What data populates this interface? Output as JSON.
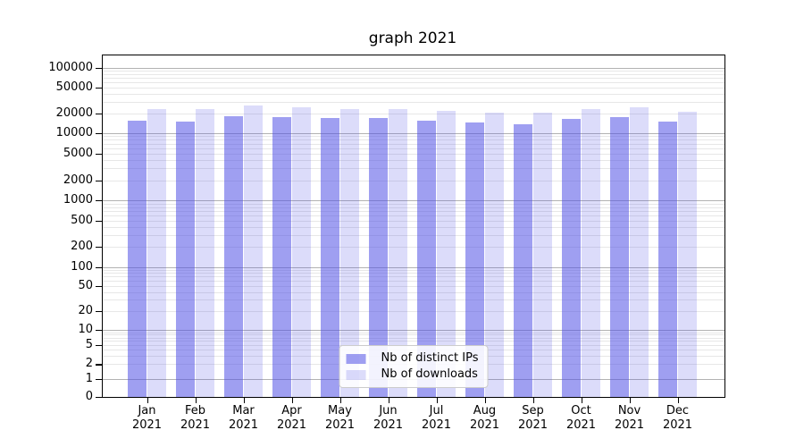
{
  "title": "graph 2021",
  "chart_data": {
    "type": "bar",
    "categories": [
      "Jan",
      "Feb",
      "Mar",
      "Apr",
      "May",
      "Jun",
      "Jul",
      "Aug",
      "Sep",
      "Oct",
      "Nov",
      "Dec"
    ],
    "category_sublabel": "2021",
    "series": [
      {
        "name": "Nb of distinct IPs",
        "color": "#5050E6",
        "alpha": 0.55,
        "values": [
          15600,
          15200,
          18100,
          17400,
          17100,
          17000,
          15700,
          14500,
          13900,
          16400,
          17500,
          14900
        ]
      },
      {
        "name": "Nb of downloads",
        "color": "#5050E6",
        "alpha": 0.2,
        "values": [
          23000,
          23000,
          26300,
          25200,
          23200,
          23700,
          21800,
          20400,
          20500,
          23300,
          24800,
          21400
        ]
      }
    ],
    "yscale": "symlog",
    "ylim": [
      0,
      148000
    ],
    "y_ticks": [
      100000,
      50000,
      20000,
      10000,
      5000,
      2000,
      1000,
      500,
      200,
      100,
      50,
      20,
      10,
      5,
      2,
      1,
      0
    ],
    "grid": true,
    "legend_position": "lower center"
  },
  "colors": {
    "bar_distinct_ips": "#A2A2F0",
    "bar_downloads": "#DCDCFA",
    "grid_major": "#b2b2b2",
    "grid_minor": "#e7e7e7",
    "legend_border": "#cccccc",
    "axis": "#000000"
  }
}
